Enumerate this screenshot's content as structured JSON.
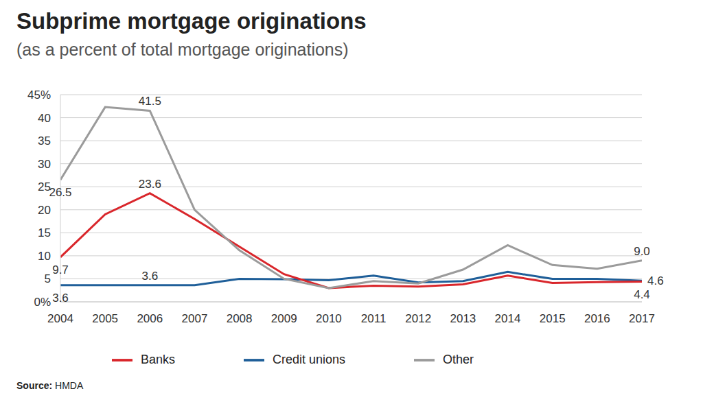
{
  "chart_data": {
    "type": "line",
    "title": "Subprime mortgage originations",
    "subtitle": "(as a percent of total mortgage originations)",
    "x": [
      2004,
      2005,
      2006,
      2007,
      2008,
      2009,
      2010,
      2011,
      2012,
      2013,
      2014,
      2015,
      2016,
      2017
    ],
    "series": [
      {
        "name": "Credit unions",
        "color": "#1f5f99",
        "values": [
          3.6,
          3.6,
          3.6,
          3.6,
          5.0,
          4.9,
          4.7,
          5.7,
          4.2,
          4.5,
          6.5,
          5.0,
          5.0,
          4.6
        ]
      },
      {
        "name": "Banks",
        "color": "#d9262b",
        "values": [
          9.7,
          19.0,
          23.6,
          18.0,
          12.0,
          6.0,
          3.0,
          3.5,
          3.3,
          3.8,
          5.7,
          4.1,
          4.3,
          4.4
        ]
      },
      {
        "name": "Other",
        "color": "#9b9b9b",
        "values": [
          26.5,
          42.3,
          41.5,
          20.0,
          11.2,
          5.0,
          3.0,
          4.5,
          4.0,
          7.0,
          12.3,
          8.0,
          7.2,
          9.0
        ]
      }
    ],
    "xlim": [
      2004,
      2017
    ],
    "xticks": [
      2004,
      2005,
      2006,
      2007,
      2008,
      2009,
      2010,
      2011,
      2012,
      2013,
      2014,
      2015,
      2016,
      2017
    ],
    "ylim": [
      0,
      45
    ],
    "yticks": [
      {
        "value": 0,
        "label": "0%"
      },
      5,
      10,
      15,
      20,
      25,
      30,
      35,
      40,
      {
        "value": 45,
        "label": "45%"
      }
    ],
    "grid": true,
    "legend": "bottom",
    "annotations": [
      {
        "x": 2004,
        "y": 26.5,
        "text": "26.5"
      },
      {
        "x": 2004,
        "y": 9.7,
        "text": "9.7"
      },
      {
        "x": 2004,
        "y": 3.6,
        "text": "3.6"
      },
      {
        "x": 2006,
        "y": 41.5,
        "text": "41.5"
      },
      {
        "x": 2006,
        "y": 23.6,
        "text": "23.6"
      },
      {
        "x": 2006,
        "y": 3.6,
        "text": "3.6"
      },
      {
        "x": 2017,
        "y": 9.0,
        "text": "9.0"
      },
      {
        "x": 2017,
        "y": 4.6,
        "text": "4.6"
      },
      {
        "x": 2017,
        "y": 4.4,
        "text": "4.4"
      }
    ],
    "source": "Source: HMDA"
  }
}
